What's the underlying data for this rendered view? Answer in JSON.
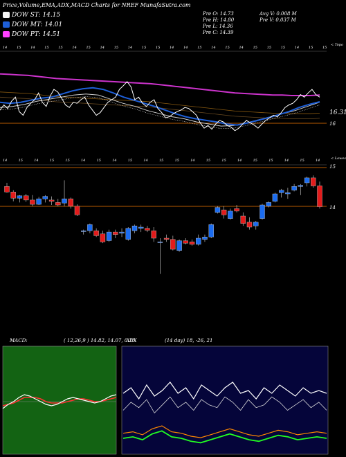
{
  "header": {
    "title": "Price,Volume,EMA,ADX,MACD Charts for NREF MunafaSutra.com",
    "legend": [
      {
        "label": "DOW ST: 14.15",
        "color": "#f5f5f5"
      },
      {
        "label": "DOW MT: 14.01",
        "color": "#1e5fd8"
      },
      {
        "label": "DOW PT: 14.51",
        "color": "#ff40ff"
      }
    ],
    "stats": {
      "open": "Pre  O: 14.73",
      "high": "Pre  H: 14.80",
      "low": "Pre  L: 14.36",
      "close": "Pre  C: 14.39",
      "avg_vol": "Avg V: 0.008 M",
      "pre_vol": "Pre  V: 0.037 M"
    }
  },
  "panels": {
    "top_tag": "< Topo",
    "mid_tag": "< Lowes",
    "price_label": "16.31",
    "top_axis_label": "16",
    "mid_axis_labels": [
      "15",
      "14"
    ],
    "macd_label": "MACD:",
    "macd_values": "( 12,26,9 ) 14.82, 14.07, 0.25",
    "adx_label": "ADX",
    "adx_values": "(14 day) 18, -26, 21"
  },
  "colors": {
    "up": "#1b6cf0",
    "down": "#e21b1b",
    "price": "#ffffff",
    "ema_long": "#cc33cc",
    "ema_mid": "#1e5fd8",
    "level_line": "#b85a00",
    "macd_bg": "#136313",
    "adx_bg": "#05053a"
  },
  "chart_data": {
    "type": "candlestick",
    "date_ticks": [
      "14",
      "15",
      "14",
      "15",
      "15",
      "14",
      "15",
      "14",
      "15",
      "14",
      "15",
      "15",
      "14",
      "14",
      "15",
      "14",
      "15",
      "14",
      "15",
      "15",
      "15",
      "14",
      "15",
      "15"
    ],
    "lower_date_ticks": [
      "14",
      "15",
      "14",
      "15",
      "15",
      "14",
      "15",
      "14",
      "15",
      "14",
      "15",
      "15",
      "14",
      "15",
      "15",
      "14",
      "15",
      "15",
      "14",
      "15",
      "14"
    ],
    "candles": [
      {
        "o": 14.72,
        "h": 14.78,
        "l": 14.62,
        "c": 14.63
      },
      {
        "o": 14.63,
        "h": 14.66,
        "l": 14.48,
        "c": 14.53
      },
      {
        "o": 14.53,
        "h": 14.58,
        "l": 14.46,
        "c": 14.57
      },
      {
        "o": 14.57,
        "h": 14.6,
        "l": 14.47,
        "c": 14.5
      },
      {
        "o": 14.5,
        "h": 14.58,
        "l": 14.4,
        "c": 14.43
      },
      {
        "o": 14.43,
        "h": 14.55,
        "l": 14.42,
        "c": 14.52
      },
      {
        "o": 14.52,
        "h": 14.58,
        "l": 14.46,
        "c": 14.56
      },
      {
        "o": 14.5,
        "h": 14.56,
        "l": 14.42,
        "c": 14.48
      },
      {
        "o": 14.46,
        "h": 14.52,
        "l": 14.4,
        "c": 14.42
      },
      {
        "o": 14.45,
        "h": 14.82,
        "l": 14.4,
        "c": 14.52
      },
      {
        "o": 14.52,
        "h": 14.54,
        "l": 14.36,
        "c": 14.4
      },
      {
        "o": 14.4,
        "h": 14.43,
        "l": 14.24,
        "c": 14.26
      },
      {
        "o": 14.0,
        "h": 14.02,
        "l": 13.94,
        "c": 14.0
      },
      {
        "o": 14.0,
        "h": 14.12,
        "l": 13.96,
        "c": 14.1
      },
      {
        "o": 14.0,
        "h": 14.04,
        "l": 13.9,
        "c": 13.92
      },
      {
        "o": 13.95,
        "h": 14.0,
        "l": 13.8,
        "c": 13.82
      },
      {
        "o": 13.84,
        "h": 14.02,
        "l": 13.82,
        "c": 13.98
      },
      {
        "o": 13.98,
        "h": 14.02,
        "l": 13.88,
        "c": 13.94
      },
      {
        "o": 13.96,
        "h": 14.04,
        "l": 13.9,
        "c": 13.98
      },
      {
        "o": 13.86,
        "h": 14.06,
        "l": 13.84,
        "c": 14.04
      },
      {
        "o": 14.0,
        "h": 14.1,
        "l": 13.96,
        "c": 14.08
      },
      {
        "o": 14.04,
        "h": 14.1,
        "l": 13.98,
        "c": 14.06
      },
      {
        "o": 14.04,
        "h": 14.08,
        "l": 13.98,
        "c": 14.01
      },
      {
        "o": 14.0,
        "h": 14.06,
        "l": 13.82,
        "c": 13.88
      },
      {
        "o": 13.82,
        "h": 13.88,
        "l": 13.3,
        "c": 13.82
      },
      {
        "o": 13.88,
        "h": 13.94,
        "l": 13.82,
        "c": 13.86
      },
      {
        "o": 13.86,
        "h": 13.92,
        "l": 13.68,
        "c": 13.7
      },
      {
        "o": 13.68,
        "h": 13.86,
        "l": 13.66,
        "c": 13.84
      },
      {
        "o": 13.84,
        "h": 13.88,
        "l": 13.78,
        "c": 13.8
      },
      {
        "o": 13.82,
        "h": 13.86,
        "l": 13.76,
        "c": 13.78
      },
      {
        "o": 13.78,
        "h": 13.94,
        "l": 13.76,
        "c": 13.88
      },
      {
        "o": 13.86,
        "h": 13.94,
        "l": 13.82,
        "c": 13.9
      },
      {
        "o": 13.9,
        "h": 14.12,
        "l": 13.88,
        "c": 14.1
      },
      {
        "o": 14.3,
        "h": 14.4,
        "l": 14.28,
        "c": 14.38
      },
      {
        "o": 14.34,
        "h": 14.4,
        "l": 14.2,
        "c": 14.26
      },
      {
        "o": 14.2,
        "h": 14.36,
        "l": 14.18,
        "c": 14.32
      },
      {
        "o": 14.36,
        "h": 14.42,
        "l": 14.3,
        "c": 14.32
      },
      {
        "o": 14.24,
        "h": 14.3,
        "l": 14.08,
        "c": 14.12
      },
      {
        "o": 14.14,
        "h": 14.22,
        "l": 14.02,
        "c": 14.06
      },
      {
        "o": 14.08,
        "h": 14.16,
        "l": 14.02,
        "c": 14.14
      },
      {
        "o": 14.2,
        "h": 14.44,
        "l": 14.18,
        "c": 14.42
      },
      {
        "o": 14.4,
        "h": 14.48,
        "l": 14.38,
        "c": 14.46
      },
      {
        "o": 14.48,
        "h": 14.62,
        "l": 14.46,
        "c": 14.6
      },
      {
        "o": 14.62,
        "h": 14.68,
        "l": 14.54,
        "c": 14.66
      },
      {
        "o": 14.6,
        "h": 14.7,
        "l": 14.52,
        "c": 14.62
      },
      {
        "o": 14.66,
        "h": 14.76,
        "l": 14.64,
        "c": 14.72
      },
      {
        "o": 14.72,
        "h": 14.76,
        "l": 14.58,
        "c": 14.74
      },
      {
        "o": 14.78,
        "h": 14.88,
        "l": 14.72,
        "c": 14.86
      },
      {
        "o": 14.86,
        "h": 14.9,
        "l": 14.7,
        "c": 14.73
      },
      {
        "o": 14.73,
        "h": 14.8,
        "l": 14.36,
        "c": 14.39
      }
    ],
    "price_line": [
      16.15,
      16.25,
      16.18,
      16.32,
      16.4,
      16.12,
      16.05,
      16.2,
      16.28,
      16.35,
      16.48,
      16.3,
      16.22,
      16.42,
      16.55,
      16.5,
      16.38,
      16.25,
      16.2,
      16.3,
      16.28,
      16.35,
      16.4,
      16.25,
      16.15,
      16.05,
      16.1,
      16.2,
      16.3,
      16.35,
      16.4,
      16.55,
      16.62,
      16.7,
      16.6,
      16.35,
      16.4,
      16.28,
      16.22,
      16.3,
      16.35,
      16.18,
      16.1,
      16.0,
      16.02,
      16.08,
      16.12,
      16.15,
      16.2,
      16.18,
      16.12,
      16.05,
      15.9,
      15.8,
      15.85,
      15.78,
      15.88,
      15.95,
      15.92,
      15.85,
      15.82,
      15.75,
      15.8,
      15.88,
      15.95,
      15.9,
      15.86,
      15.8,
      15.88,
      15.95,
      16.0,
      16.05,
      16.02,
      16.1,
      16.2,
      16.25,
      16.28,
      16.35,
      16.45,
      16.4,
      16.48,
      16.55,
      16.45,
      16.4
    ],
    "ema_long": [
      16.85,
      16.84,
      16.83,
      16.82,
      16.8,
      16.78,
      16.76,
      16.75,
      16.74,
      16.73,
      16.72,
      16.71,
      16.7,
      16.69,
      16.68,
      16.67,
      16.66,
      16.64,
      16.62,
      16.6,
      16.58,
      16.56,
      16.54,
      16.52,
      16.5,
      16.48,
      16.47,
      16.46,
      16.45,
      16.44,
      16.44,
      16.43,
      16.43,
      16.43,
      16.44
    ],
    "ema_mid": [
      16.3,
      16.28,
      16.3,
      16.34,
      16.38,
      16.4,
      16.46,
      16.52,
      16.56,
      16.58,
      16.55,
      16.48,
      16.4,
      16.34,
      16.28,
      16.22,
      16.15,
      16.08,
      16.02,
      15.98,
      15.95,
      15.92,
      15.88,
      15.86,
      15.9,
      15.95,
      16.0,
      16.06,
      16.12,
      16.2,
      16.26,
      16.31
    ],
    "ema_short": [
      16.2,
      16.22,
      16.26,
      16.32,
      16.36,
      16.4,
      16.44,
      16.46,
      16.44,
      16.36,
      16.28,
      16.22,
      16.14,
      16.08,
      16.02,
      15.98,
      15.92,
      15.88,
      15.84,
      15.85,
      15.9,
      15.96,
      16.02,
      16.08,
      16.14,
      16.22,
      16.3
    ],
    "macd_line": [
      -0.05,
      -0.02,
      0.0,
      0.03,
      0.05,
      0.04,
      0.02,
      0.0,
      -0.02,
      -0.03,
      -0.02,
      0.0,
      0.02,
      0.03,
      0.02,
      0.01,
      0.0,
      -0.01,
      0.0,
      0.02,
      0.04,
      0.05
    ],
    "macd_signal": [
      -0.03,
      -0.02,
      -0.01,
      0.01,
      0.03,
      0.03,
      0.03,
      0.02,
      0.0,
      -0.01,
      -0.01,
      -0.01,
      0.0,
      0.01,
      0.02,
      0.02,
      0.01,
      0.0,
      0.0,
      0.01,
      0.02,
      0.03
    ],
    "adx_plus": [
      18,
      24,
      20,
      26,
      16,
      22,
      28,
      20,
      24,
      18,
      26,
      22,
      20,
      28,
      24,
      18,
      26,
      20,
      22,
      28,
      24,
      18,
      22,
      26,
      20,
      24,
      18
    ],
    "adx_minus": [
      26,
      30,
      22,
      32,
      24,
      28,
      34,
      26,
      30,
      22,
      32,
      28,
      24,
      30,
      34,
      26,
      28,
      22,
      30,
      26,
      32,
      28,
      24,
      30,
      26,
      28,
      26
    ],
    "adx": [
      21,
      22,
      20,
      24,
      26,
      22,
      21,
      19,
      18,
      20,
      22,
      24,
      22,
      20,
      19,
      21,
      23,
      22,
      20,
      21,
      22,
      21
    ]
  }
}
